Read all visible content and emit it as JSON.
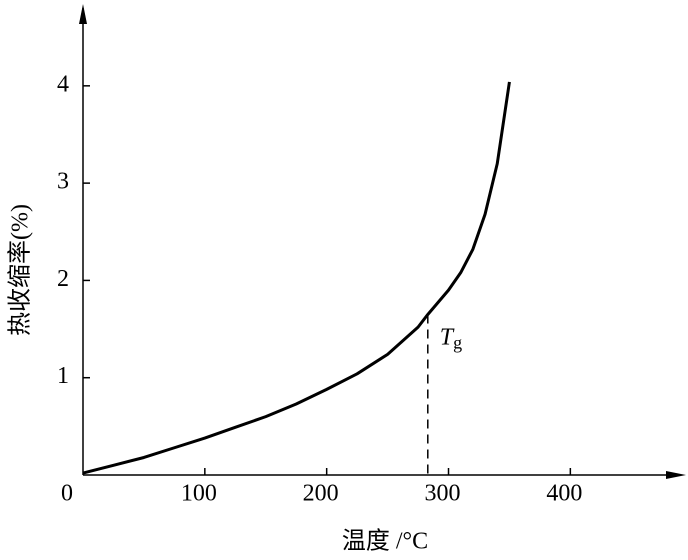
{
  "chart_data": {
    "type": "line",
    "x_label": "温度 /°C",
    "y_label": "热收缩率(%)",
    "xlim": [
      0,
      490
    ],
    "ylim": [
      0,
      4.8
    ],
    "xticks": [
      0,
      100,
      200,
      300,
      400
    ],
    "yticks": [
      1,
      2,
      3,
      4
    ],
    "grid": false,
    "series": [
      {
        "color": "#000000",
        "x": [
          0,
          25,
          50,
          75,
          100,
          125,
          150,
          175,
          200,
          225,
          250,
          275,
          283,
          300,
          310,
          320,
          330,
          340,
          350
        ],
        "values": [
          0.02,
          0.1,
          0.18,
          0.28,
          0.38,
          0.49,
          0.6,
          0.73,
          0.88,
          1.04,
          1.24,
          1.52,
          1.65,
          1.9,
          2.08,
          2.32,
          2.68,
          3.2,
          4.04
        ]
      }
    ],
    "annotations": [
      {
        "text": "T",
        "subscript": "g",
        "x": 283,
        "y": 1.65
      }
    ]
  }
}
